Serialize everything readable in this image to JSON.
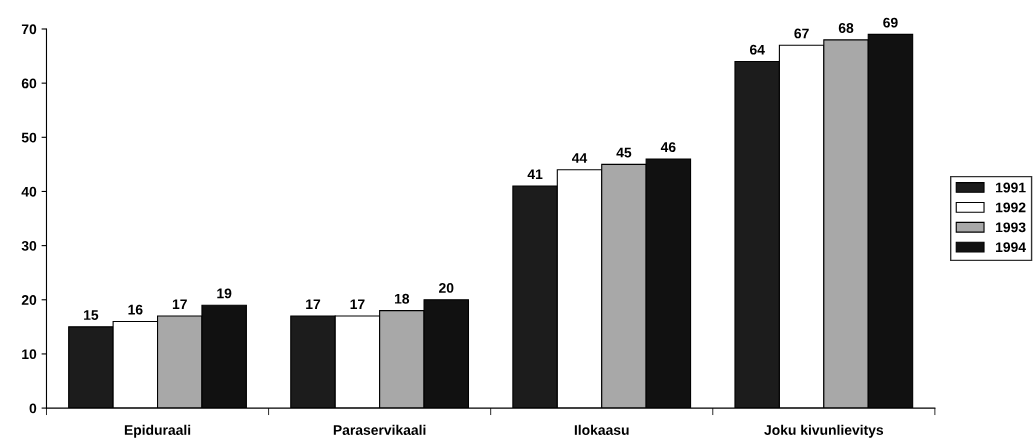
{
  "chart_data": {
    "type": "bar",
    "categories": [
      "Epiduraali",
      "Paraservikaali",
      "Ilokaasu",
      "Joku kivunlievitys"
    ],
    "series": [
      {
        "name": "1991",
        "color": "#1c1c1c",
        "values": [
          15,
          17,
          41,
          64
        ]
      },
      {
        "name": "1992",
        "color": "#ffffff",
        "values": [
          16,
          17,
          44,
          67
        ]
      },
      {
        "name": "1993",
        "color": "#a8a8a8",
        "values": [
          17,
          18,
          45,
          68
        ]
      },
      {
        "name": "1994",
        "color": "#111111",
        "values": [
          19,
          20,
          46,
          69
        ]
      }
    ],
    "ylim": [
      0,
      70
    ],
    "yticks": [
      0,
      10,
      20,
      30,
      40,
      50,
      60,
      70
    ],
    "data_labels": true,
    "grid": false,
    "legend": "right"
  }
}
